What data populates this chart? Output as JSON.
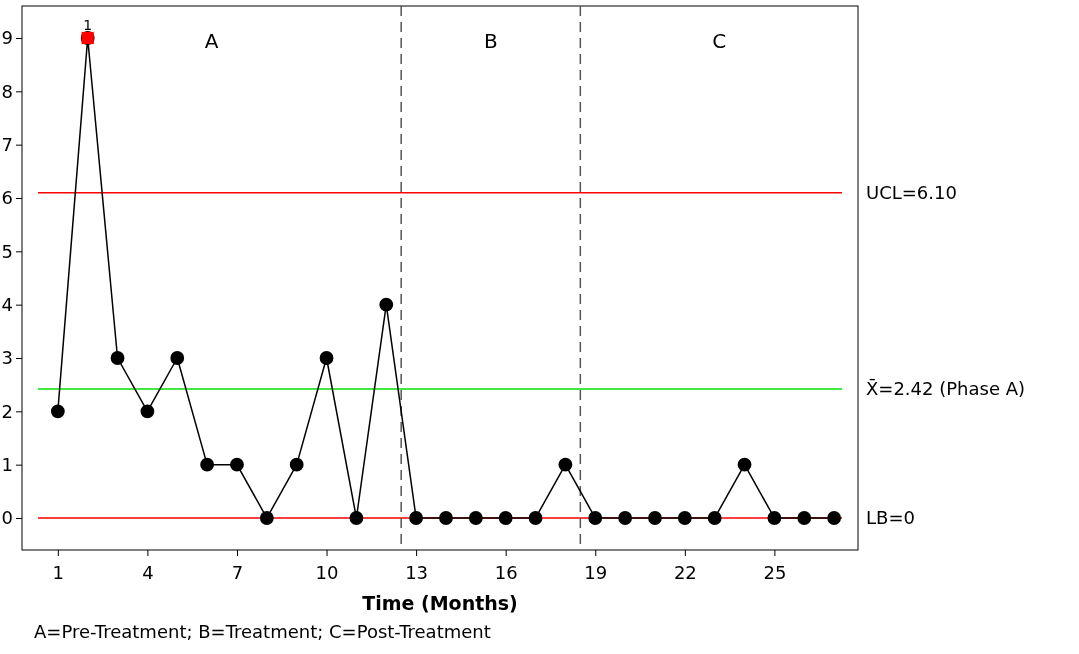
{
  "chart_data": {
    "type": "line",
    "xlabel": "Time (Months)",
    "x": [
      1,
      2,
      3,
      4,
      5,
      6,
      7,
      8,
      9,
      10,
      11,
      12,
      13,
      14,
      15,
      16,
      17,
      18,
      19,
      20,
      21,
      22,
      23,
      24,
      25,
      26,
      27
    ],
    "series": [
      {
        "color": "#000000",
        "marker": "circle",
        "values": [
          2,
          9,
          3,
          2,
          3,
          1,
          1,
          0,
          1,
          3,
          0,
          4,
          0,
          0,
          0,
          0,
          0,
          1,
          0,
          0,
          0,
          0,
          0,
          1,
          0,
          0,
          0
        ]
      },
      {
        "type": "scatter",
        "color": "#ff0000",
        "marker": "square",
        "x": [
          2
        ],
        "values": [
          9
        ]
      }
    ],
    "xlim": [
      -0.2,
      27.8
    ],
    "xticks": [
      1,
      4,
      7,
      10,
      13,
      16,
      19,
      22,
      25
    ],
    "ylim": [
      -0.6,
      9.6
    ],
    "yticks": [
      0,
      1,
      2,
      3,
      4,
      5,
      6,
      7,
      8,
      9
    ],
    "grid": false,
    "line_style": "solid",
    "ref_lines": [
      {
        "axis": "y",
        "value": 6.1,
        "label": "UCL=6.10",
        "color": "#ff0000",
        "line_style": "solid"
      },
      {
        "axis": "y",
        "value": 2.42,
        "label": "X̄=2.42 (Phase A)",
        "color": "#00e000",
        "line_style": "solid"
      },
      {
        "axis": "y",
        "value": 0,
        "label": "LB=0",
        "color": "#ff0000",
        "line_style": "solid"
      },
      {
        "axis": "x",
        "value": 12.5,
        "color": "#555555",
        "line_style": "dashed"
      },
      {
        "axis": "x",
        "value": 18.5,
        "color": "#555555",
        "line_style": "dashed"
      }
    ],
    "annotations": [
      {
        "text": "1",
        "x": 2,
        "y": 9
      },
      "A",
      "B",
      "C",
      "A=Pre-Treatment; B=Treatment; C=Post-Treatment"
    ]
  }
}
